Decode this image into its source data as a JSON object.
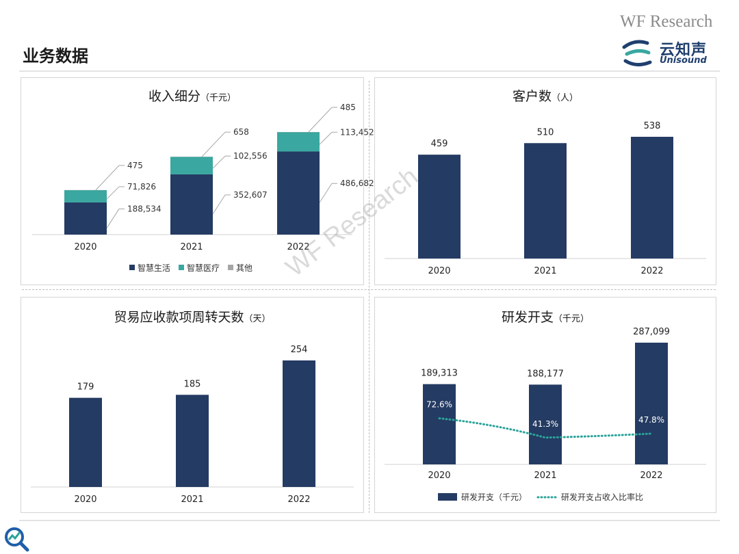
{
  "header": {
    "brand": "WF Research",
    "page_title": "业务数据",
    "logo_cn": "云知声",
    "logo_en": "Unisound"
  },
  "watermark": "WF Research",
  "colors": {
    "navy": "#243b63",
    "teal": "#3aa7a0",
    "gray": "#a6a6a6",
    "dotted": "#2aa39a"
  },
  "chart_data": [
    {
      "type": "bar",
      "stacked": true,
      "title": "收入细分",
      "unit": "（千元）",
      "categories": [
        "2020",
        "2021",
        "2022"
      ],
      "series": [
        {
          "name": "智慧生活",
          "values": [
            188534,
            352607,
            486682
          ],
          "labels": [
            "188,534",
            "352,607",
            "486,682"
          ]
        },
        {
          "name": "智慧医疗",
          "values": [
            71826,
            102556,
            113452
          ],
          "labels": [
            "71,826",
            "102,556",
            "113,452"
          ]
        },
        {
          "name": "其他",
          "values": [
            475,
            658,
            485
          ],
          "labels": [
            "475",
            "658",
            "485"
          ]
        }
      ],
      "legend": "bottom"
    },
    {
      "type": "bar",
      "title": "客户数",
      "unit": "（人）",
      "categories": [
        "2020",
        "2021",
        "2022"
      ],
      "values": [
        459,
        510,
        538
      ],
      "labels": [
        "459",
        "510",
        "538"
      ]
    },
    {
      "type": "bar",
      "title": "贸易应收款项周转天数",
      "unit": "（天）",
      "categories": [
        "2020",
        "2021",
        "2022"
      ],
      "values": [
        179,
        185,
        254
      ],
      "labels": [
        "179",
        "185",
        "254"
      ]
    },
    {
      "type": "bar",
      "title": "研发开支",
      "unit": "（千元）",
      "categories": [
        "2020",
        "2021",
        "2022"
      ],
      "series": [
        {
          "name": "研发开支（千元）",
          "kind": "bar",
          "values": [
            189313,
            188177,
            287099
          ],
          "labels": [
            "189,313",
            "188,177",
            "287,099"
          ]
        },
        {
          "name": "研发开支占收入比率比",
          "kind": "line-dotted",
          "values": [
            72.6,
            41.3,
            47.8
          ],
          "labels": [
            "72.6%",
            "41.3%",
            "47.8%"
          ]
        }
      ],
      "legend": "bottom"
    }
  ]
}
